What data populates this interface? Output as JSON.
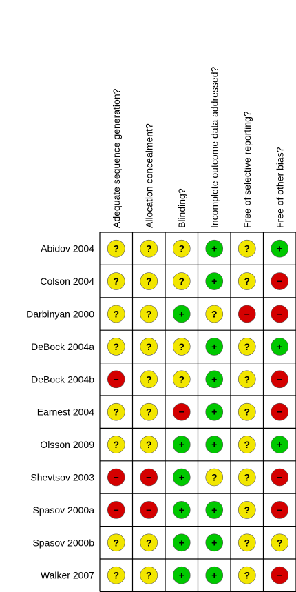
{
  "chart_data": {
    "type": "table",
    "columns": [
      "Adequate sequence generation?",
      "Allocation concealment?",
      "Blinding?",
      "Incomplete outcome data addressed?",
      "Free of selective reporting?",
      "Free of other bias?"
    ],
    "rows": [
      {
        "study": "Abidov 2004",
        "ratings": [
          "?",
          "?",
          "?",
          "+",
          "?",
          "+"
        ]
      },
      {
        "study": "Colson 2004",
        "ratings": [
          "?",
          "?",
          "?",
          "+",
          "?",
          "-"
        ]
      },
      {
        "study": "Darbinyan 2000",
        "ratings": [
          "?",
          "?",
          "+",
          "?",
          "-",
          "-"
        ]
      },
      {
        "study": "DeBock 2004a",
        "ratings": [
          "?",
          "?",
          "?",
          "+",
          "?",
          "+"
        ]
      },
      {
        "study": "DeBock 2004b",
        "ratings": [
          "-",
          "?",
          "?",
          "+",
          "?",
          "-"
        ]
      },
      {
        "study": "Earnest 2004",
        "ratings": [
          "?",
          "?",
          "-",
          "+",
          "?",
          "-"
        ]
      },
      {
        "study": "Olsson 2009",
        "ratings": [
          "?",
          "?",
          "+",
          "+",
          "?",
          "+"
        ]
      },
      {
        "study": "Shevtsov 2003",
        "ratings": [
          "-",
          "-",
          "+",
          "?",
          "?",
          "-"
        ]
      },
      {
        "study": "Spasov 2000a",
        "ratings": [
          "-",
          "-",
          "+",
          "+",
          "?",
          "-"
        ]
      },
      {
        "study": "Spasov 2000b",
        "ratings": [
          "?",
          "?",
          "+",
          "+",
          "?",
          "?"
        ]
      },
      {
        "study": "Walker 2007",
        "ratings": [
          "?",
          "?",
          "+",
          "+",
          "?",
          "-"
        ]
      }
    ],
    "legend": {
      "?": {
        "color": "#f2e600",
        "display": "?"
      },
      "+": {
        "color": "#00c800",
        "display": "+"
      },
      "-": {
        "color": "#d40000",
        "display": "−"
      }
    }
  }
}
